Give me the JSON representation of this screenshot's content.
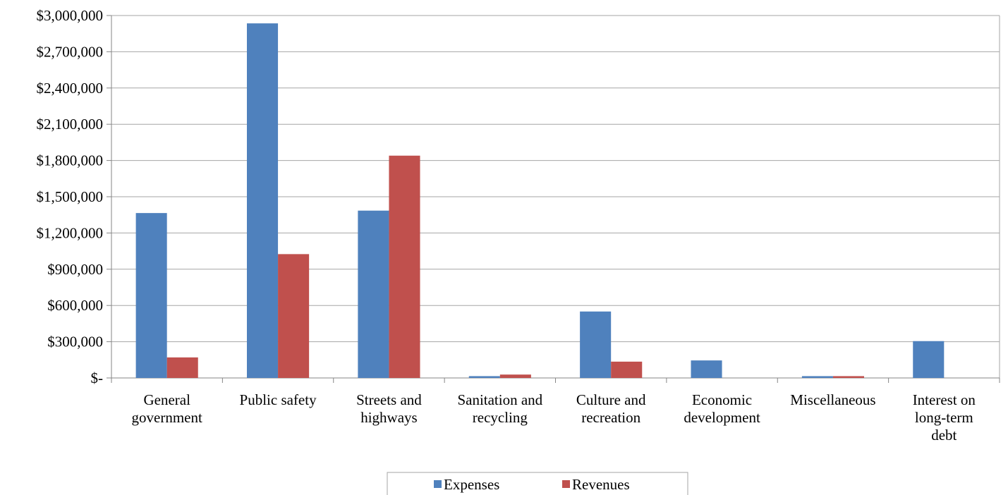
{
  "chart_data": {
    "type": "bar",
    "title": "",
    "xlabel": "",
    "ylabel": "",
    "ylim": [
      0,
      3000000
    ],
    "y_ticks": [
      0,
      300000,
      600000,
      900000,
      1200000,
      1500000,
      1800000,
      2100000,
      2400000,
      2700000,
      3000000
    ],
    "y_tick_labels": [
      "$-",
      "$300,000",
      "$600,000",
      "$900,000",
      "$1,200,000",
      "$1,500,000",
      "$1,800,000",
      "$2,100,000",
      "$2,400,000",
      "$2,700,000",
      "$3,000,000"
    ],
    "grid": true,
    "legend_position": "bottom",
    "categories": [
      [
        "General",
        "government"
      ],
      [
        "Public safety"
      ],
      [
        "Streets and",
        "highways"
      ],
      [
        "Sanitation and",
        "recycling"
      ],
      [
        "Culture and",
        "recreation"
      ],
      [
        "Economic",
        "development"
      ],
      [
        "Miscellaneous"
      ],
      [
        "Interest on",
        "long-term",
        "debt"
      ]
    ],
    "series": [
      {
        "name": "Expenses",
        "color": "#4F81BD",
        "values": [
          1365000,
          2935000,
          1385000,
          15000,
          550000,
          145000,
          15000,
          305000
        ]
      },
      {
        "name": "Revenues",
        "color": "#C0504D",
        "values": [
          170000,
          1025000,
          1840000,
          28000,
          135000,
          0,
          15000,
          0
        ]
      }
    ]
  }
}
